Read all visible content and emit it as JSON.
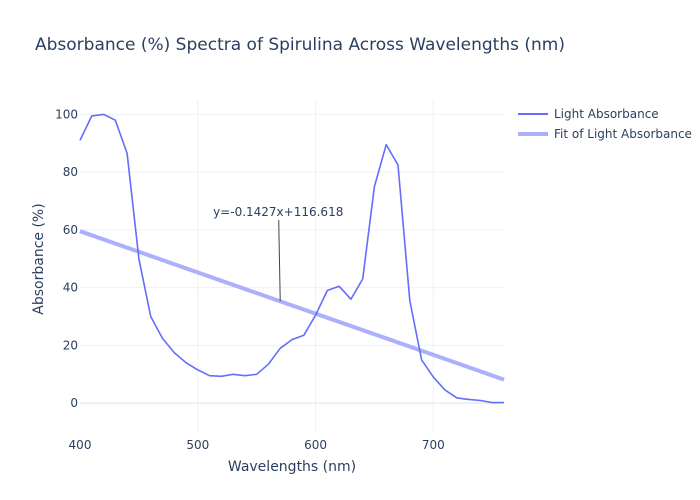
{
  "chart_data": {
    "type": "line",
    "title": "Absorbance (%) Spectra of Spirulina Across Wavelengths (nm)",
    "xlabel": "Wavelengths (nm)",
    "ylabel": "Absorbance (%)",
    "xlim": [
      400,
      760
    ],
    "ylim": [
      -10,
      105
    ],
    "xticks": [
      400,
      500,
      600,
      700
    ],
    "yticks": [
      0,
      20,
      40,
      60,
      80,
      100
    ],
    "grid": true,
    "legend_position": "top-right",
    "series": [
      {
        "name": "Light Absorbance",
        "style": "line",
        "color": "#636efa",
        "x": [
          400,
          410,
          420,
          430,
          440,
          450,
          460,
          470,
          480,
          490,
          500,
          510,
          520,
          530,
          540,
          550,
          560,
          570,
          580,
          590,
          600,
          610,
          620,
          630,
          640,
          650,
          660,
          670,
          680,
          690,
          700,
          710,
          720,
          730,
          740,
          750,
          760
        ],
        "y": [
          91,
          99.5,
          100,
          98,
          86.5,
          50,
          30,
          22.5,
          17.5,
          14,
          11.5,
          9.5,
          9.3,
          10,
          9.5,
          10,
          13.5,
          19,
          22,
          23.5,
          30.5,
          39,
          40.5,
          36,
          43,
          75,
          89.5,
          82.5,
          35.5,
          15,
          9,
          4.5,
          1.8,
          1.3,
          0.9,
          0.2,
          0.2
        ]
      },
      {
        "name": "Fit of Light Absorbance",
        "style": "fit",
        "color": "#aab0fb",
        "x": [
          400,
          760
        ],
        "y": [
          59.538,
          8.166
        ]
      }
    ],
    "annotation": {
      "text": "y=-0.1427x+116.618",
      "x": 570,
      "y": 35.3
    }
  }
}
